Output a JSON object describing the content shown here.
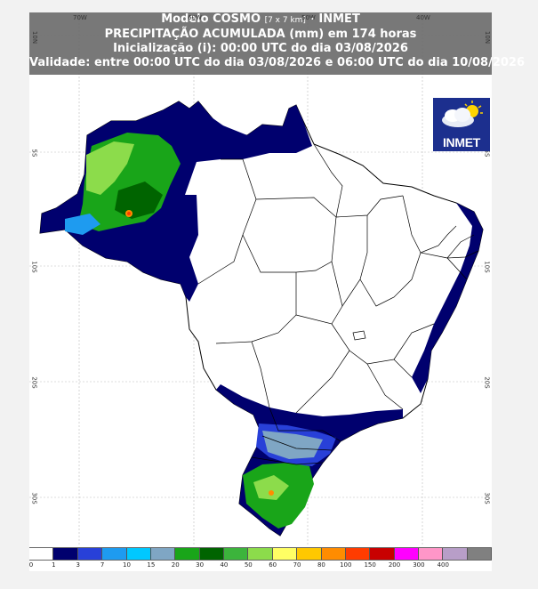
{
  "title": {
    "line1_main": "Modelo COSMO",
    "line1_small": "[7 x 7 km]",
    "line1_suffix": "- INMET",
    "line2": "PRECIPITAÇÃO ACUMULADA (mm) em 174 horas",
    "line3": "Inicialização (i): 00:00 UTC do dia 03/08/2026",
    "line4": "Validade: entre 00:00 UTC do dia 03/08/2026 e 06:00 UTC do dia 10/08/2026"
  },
  "axes": {
    "lon_labels": [
      "70W",
      "60W",
      "50W",
      "40W"
    ],
    "lat_labels": [
      "10N",
      "5S",
      "10S",
      "20S",
      "30S"
    ]
  },
  "logo": {
    "text": "INMET",
    "icon": "cloud-sun-icon"
  },
  "legend": {
    "labels": [
      "0",
      "1",
      "3",
      "7",
      "10",
      "15",
      "20",
      "30",
      "40",
      "50",
      "60",
      "70",
      "80",
      "100",
      "150",
      "200",
      "300",
      "400"
    ],
    "colors": [
      "#ffffff",
      "#00006e",
      "#2840d8",
      "#1e9bf0",
      "#00c8ff",
      "#7fa6c4",
      "#19a519",
      "#006400",
      "#3cb43c",
      "#8cdc4b",
      "#ffff64",
      "#ffc800",
      "#ff8c00",
      "#ff3c00",
      "#c80000",
      "#ff00ff",
      "#ff96c8",
      "#b89ec8",
      "#808080"
    ]
  }
}
